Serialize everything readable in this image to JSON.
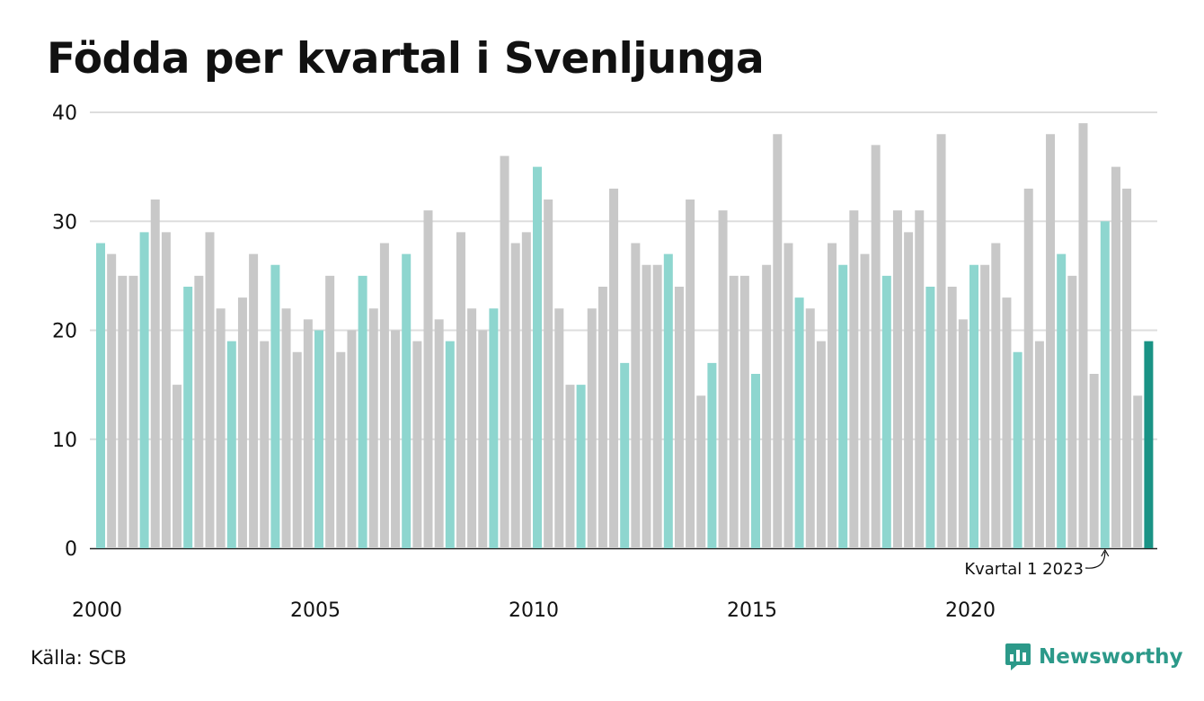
{
  "title": "Födda per kvartal i Svenljunga",
  "source": "Källa: SCB",
  "brand": "Newsworthy",
  "colors": {
    "highlight_q1": "#8ed6cf",
    "other": "#c8c8c8",
    "latest": "#1a9385",
    "grid": "#dddddd",
    "axis": "#222222",
    "brand": "#2c9989"
  },
  "chart_data": {
    "type": "bar",
    "x_ticks": [
      "2000",
      "2005",
      "2010",
      "2015",
      "2020"
    ],
    "y_ticks": [
      "0",
      "10",
      "20",
      "30",
      "40"
    ],
    "ylim": [
      0,
      40
    ],
    "grid": true,
    "annotation": "Kvartal 1 2023",
    "start_year": 2000,
    "values": [
      28,
      27,
      25,
      25,
      29,
      32,
      29,
      15,
      24,
      25,
      29,
      22,
      19,
      23,
      27,
      19,
      26,
      22,
      18,
      21,
      20,
      25,
      18,
      20,
      25,
      22,
      28,
      20,
      27,
      19,
      31,
      21,
      19,
      29,
      22,
      20,
      22,
      36,
      28,
      29,
      35,
      32,
      22,
      15,
      15,
      22,
      24,
      33,
      17,
      28,
      26,
      26,
      27,
      24,
      32,
      14,
      17,
      31,
      25,
      25,
      16,
      26,
      38,
      28,
      23,
      22,
      19,
      28,
      26,
      31,
      27,
      37,
      25,
      31,
      29,
      31,
      24,
      38,
      24,
      21,
      26,
      26,
      28,
      23,
      18,
      33,
      19,
      38,
      27,
      25,
      39,
      16,
      30,
      35,
      33,
      14,
      19
    ]
  }
}
